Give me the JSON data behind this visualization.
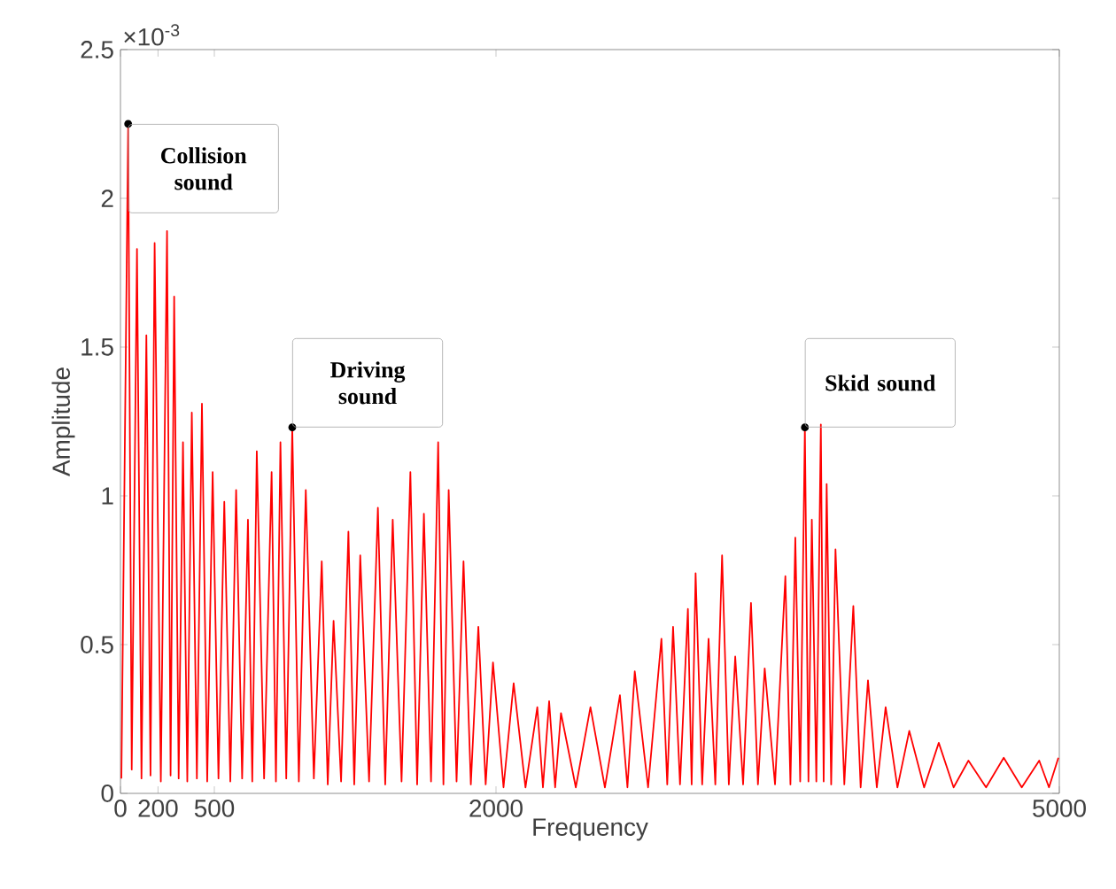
{
  "chart_data": {
    "type": "line",
    "xlabel": "Frequency",
    "ylabel": "Amplitude",
    "xlim": [
      0,
      5000
    ],
    "xticks": [
      0,
      200,
      500,
      2000,
      5000
    ],
    "ylim": [
      0,
      2.5
    ],
    "yticks": [
      0,
      0.5,
      1,
      1.5,
      2,
      2.5
    ],
    "annotations": [
      "×10$^{-3}$",
      {
        "text": "Collision sound",
        "x": 41,
        "y": 2.25
      },
      {
        "text": "Driving sound",
        "x": 915,
        "y": 1.23
      },
      {
        "text": "Skid sound",
        "x": 3645,
        "y": 1.23
      }
    ],
    "line_style": "solid",
    "series": [
      {
        "color": "#ff0000",
        "x": [
          5,
          41,
          60,
          88,
          112,
          138,
          160,
          182,
          215,
          248,
          267,
          286,
          310,
          333,
          356,
          380,
          407,
          434,
          462,
          491,
          522,
          553,
          585,
          616,
          648,
          679,
          702,
          726,
          765,
          805,
          828,
          852,
          883,
          915,
          950,
          987,
          1030,
          1072,
          1104,
          1135,
          1175,
          1214,
          1245,
          1277,
          1324,
          1371,
          1410,
          1450,
          1497,
          1544,
          1580,
          1616,
          1654,
          1692,
          1720,
          1748,
          1790,
          1827,
          1866,
          1906,
          1945,
          1984,
          2040,
          2094,
          2157,
          2220,
          2250,
          2283,
          2315,
          2346,
          2425,
          2503,
          2580,
          2660,
          2700,
          2739,
          2810,
          2881,
          2912,
          2943,
          2980,
          3022,
          3042,
          3063,
          3098,
          3132,
          3168,
          3204,
          3240,
          3274,
          3316,
          3358,
          3395,
          3431,
          3486,
          3541,
          3568,
          3594,
          3620,
          3645,
          3664,
          3682,
          3706,
          3730,
          3745,
          3761,
          3785,
          3808,
          3855,
          3903,
          3942,
          3981,
          4028,
          4075,
          4138,
          4201,
          4280,
          4358,
          4437,
          4516,
          4610,
          4704,
          4800,
          4893,
          4945,
          4995
        ],
        "values": [
          0.05,
          2.25,
          0.08,
          1.83,
          0.05,
          1.54,
          0.06,
          1.85,
          0.04,
          1.89,
          0.06,
          1.67,
          0.05,
          1.18,
          0.04,
          1.28,
          0.05,
          1.31,
          0.04,
          1.08,
          0.05,
          0.98,
          0.04,
          1.02,
          0.05,
          0.92,
          0.04,
          1.15,
          0.05,
          1.08,
          0.04,
          1.18,
          0.05,
          1.23,
          0.04,
          1.02,
          0.05,
          0.78,
          0.03,
          0.58,
          0.04,
          0.88,
          0.03,
          0.8,
          0.04,
          0.96,
          0.03,
          0.92,
          0.04,
          1.08,
          0.03,
          0.94,
          0.04,
          1.18,
          0.03,
          1.02,
          0.04,
          0.78,
          0.03,
          0.56,
          0.03,
          0.44,
          0.02,
          0.37,
          0.02,
          0.29,
          0.02,
          0.31,
          0.02,
          0.27,
          0.02,
          0.29,
          0.02,
          0.33,
          0.02,
          0.41,
          0.02,
          0.52,
          0.03,
          0.56,
          0.03,
          0.62,
          0.03,
          0.74,
          0.03,
          0.52,
          0.03,
          0.8,
          0.03,
          0.46,
          0.03,
          0.64,
          0.03,
          0.42,
          0.03,
          0.73,
          0.03,
          0.86,
          0.04,
          1.23,
          0.04,
          0.92,
          0.04,
          1.24,
          0.04,
          1.04,
          0.03,
          0.82,
          0.03,
          0.63,
          0.02,
          0.38,
          0.02,
          0.29,
          0.02,
          0.21,
          0.02,
          0.17,
          0.02,
          0.11,
          0.02,
          0.12,
          0.02,
          0.11,
          0.02,
          0.12
        ]
      }
    ]
  }
}
